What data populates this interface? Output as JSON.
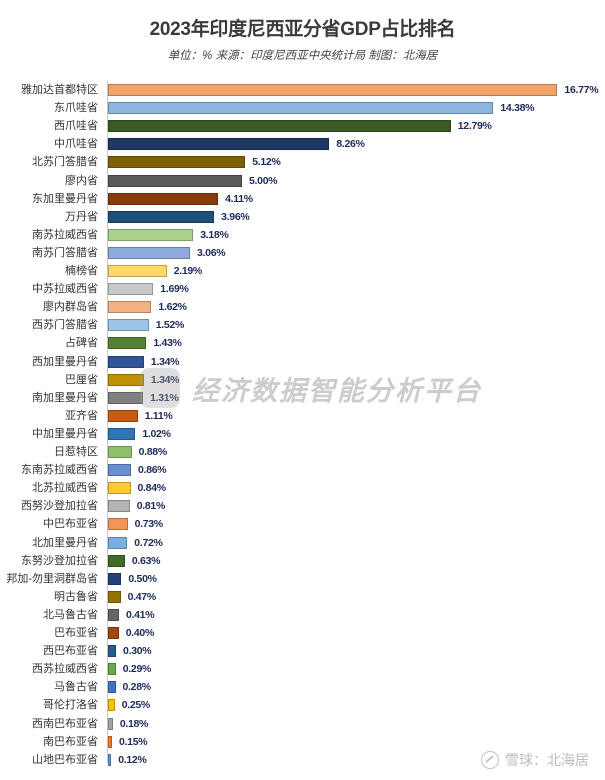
{
  "header": {
    "title": "2023年印度尼西亚分省GDP占比排名",
    "subtitle": "单位：% 来源：印度尼西亚中央统计局 制图：北海居"
  },
  "watermark": {
    "text": "经济数据智能分析平台"
  },
  "footer": {
    "icon": "snowball-icon",
    "text": "雪球：北海居"
  },
  "chart_data": {
    "type": "bar",
    "orientation": "horizontal",
    "title": "2023年印度尼西亚分省GDP占比排名",
    "subtitle": "单位：% 来源：印度尼西亚中央统计局 制图：北海居",
    "xlabel": "",
    "ylabel": "",
    "unit": "%",
    "xlim": [
      0,
      17
    ],
    "grid": false,
    "legend": "none",
    "categories": [
      "雅加达首都特区",
      "东爪哇省",
      "西爪哇省",
      "中爪哇省",
      "北苏门答腊省",
      "廖内省",
      "东加里曼丹省",
      "万丹省",
      "南苏拉威西省",
      "南苏门答腊省",
      "楠榜省",
      "中苏拉威西省",
      "廖内群岛省",
      "西苏门答腊省",
      "占碑省",
      "西加里曼丹省",
      "巴厘省",
      "南加里曼丹省",
      "亚齐省",
      "中加里曼丹省",
      "日惹特区",
      "东南苏拉威西省",
      "北苏拉威西省",
      "西努沙登加拉省",
      "中巴布亚省",
      "北加里曼丹省",
      "东努沙登加拉省",
      "邦加-勿里洞群岛省",
      "明古鲁省",
      "北马鲁古省",
      "巴布亚省",
      "西巴布亚省",
      "西苏拉威西省",
      "马鲁古省",
      "哥伦打洛省",
      "西南巴布亚省",
      "南巴布亚省",
      "山地巴布亚省"
    ],
    "values": [
      16.77,
      14.38,
      12.79,
      8.26,
      5.12,
      5.0,
      4.11,
      3.96,
      3.18,
      3.06,
      2.19,
      1.69,
      1.62,
      1.52,
      1.43,
      1.34,
      1.34,
      1.31,
      1.11,
      1.02,
      0.88,
      0.86,
      0.84,
      0.81,
      0.73,
      0.72,
      0.63,
      0.5,
      0.47,
      0.41,
      0.4,
      0.3,
      0.29,
      0.28,
      0.25,
      0.18,
      0.15,
      0.12
    ],
    "value_labels": [
      "16.77%",
      "14.38%",
      "12.79%",
      "8.26%",
      "5.12%",
      "5.00%",
      "4.11%",
      "3.96%",
      "3.18%",
      "3.06%",
      "2.19%",
      "1.69%",
      "1.62%",
      "1.52%",
      "1.43%",
      "1.34%",
      "1.34%",
      "1.31%",
      "1.11%",
      "1.02%",
      "0.88%",
      "0.86%",
      "0.84%",
      "0.81%",
      "0.73%",
      "0.72%",
      "0.63%",
      "0.50%",
      "0.47%",
      "0.41%",
      "0.40%",
      "0.30%",
      "0.29%",
      "0.28%",
      "0.25%",
      "0.18%",
      "0.15%",
      "0.12%"
    ],
    "colors": [
      "#f0a46c",
      "#8cb6e0",
      "#3b5b25",
      "#1f3864",
      "#7f6000",
      "#595959",
      "#843c0c",
      "#1f4e79",
      "#a9d18e",
      "#8faadc",
      "#ffd966",
      "#c9c9c9",
      "#f4b183",
      "#9dc3e6",
      "#548235",
      "#2f5597",
      "#bf9000",
      "#7f7f7f",
      "#c55a11",
      "#2e75b6",
      "#8fc06a",
      "#6a8fd0",
      "#ffc832",
      "#b4b4b4",
      "#f4935a",
      "#7aaee0",
      "#3f6a2a",
      "#24427a",
      "#957300",
      "#666666",
      "#a0470f",
      "#245a8e",
      "#6aa84f",
      "#4472c4",
      "#ffc000",
      "#a5a5a5",
      "#ed7d31",
      "#5b9bd5"
    ]
  }
}
